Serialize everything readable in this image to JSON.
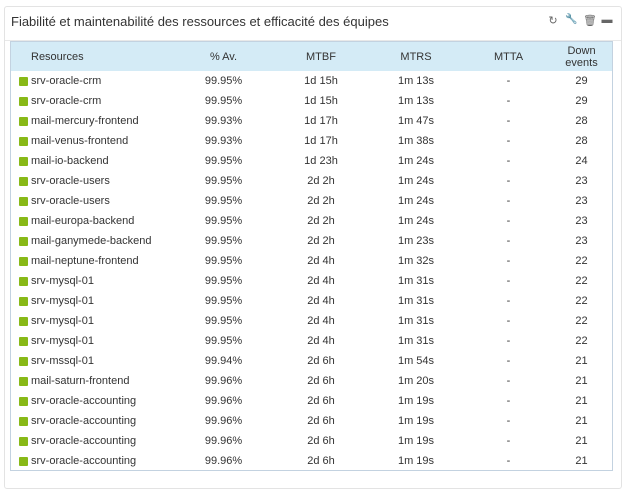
{
  "widget": {
    "title": "Fiabilité et maintenabilité des ressources et efficacité des équipes",
    "tools": [
      {
        "name": "refresh-icon",
        "glyph": "↻"
      },
      {
        "name": "wrench-icon",
        "glyph": "🔧"
      },
      {
        "name": "trash-icon",
        "glyph": "🗑"
      },
      {
        "name": "minimize-icon",
        "glyph": "▬"
      }
    ]
  },
  "colors": {
    "status_ok": "#88b917",
    "header_bg": "#d4ebf6"
  },
  "table": {
    "headers": [
      "Resources",
      "% Av.",
      "MTBF",
      "MTRS",
      "MTTA",
      "Down events"
    ],
    "rows": [
      [
        "srv-oracle-crm",
        "99.95%",
        "1d 15h",
        "1m 13s",
        "-",
        "29"
      ],
      [
        "srv-oracle-crm",
        "99.95%",
        "1d 15h",
        "1m 13s",
        "-",
        "29"
      ],
      [
        "mail-mercury-frontend",
        "99.93%",
        "1d 17h",
        "1m 47s",
        "-",
        "28"
      ],
      [
        "mail-venus-frontend",
        "99.93%",
        "1d 17h",
        "1m 38s",
        "-",
        "28"
      ],
      [
        "mail-io-backend",
        "99.95%",
        "1d 23h",
        "1m 24s",
        "-",
        "24"
      ],
      [
        "srv-oracle-users",
        "99.95%",
        "2d 2h",
        "1m 24s",
        "-",
        "23"
      ],
      [
        "srv-oracle-users",
        "99.95%",
        "2d 2h",
        "1m 24s",
        "-",
        "23"
      ],
      [
        "mail-europa-backend",
        "99.95%",
        "2d 2h",
        "1m 24s",
        "-",
        "23"
      ],
      [
        "mail-ganymede-backend",
        "99.95%",
        "2d 2h",
        "1m 23s",
        "-",
        "23"
      ],
      [
        "mail-neptune-frontend",
        "99.95%",
        "2d 4h",
        "1m 32s",
        "-",
        "22"
      ],
      [
        "srv-mysql-01",
        "99.95%",
        "2d 4h",
        "1m 31s",
        "-",
        "22"
      ],
      [
        "srv-mysql-01",
        "99.95%",
        "2d 4h",
        "1m 31s",
        "-",
        "22"
      ],
      [
        "srv-mysql-01",
        "99.95%",
        "2d 4h",
        "1m 31s",
        "-",
        "22"
      ],
      [
        "srv-mysql-01",
        "99.95%",
        "2d 4h",
        "1m 31s",
        "-",
        "22"
      ],
      [
        "srv-mssql-01",
        "99.94%",
        "2d 6h",
        "1m 54s",
        "-",
        "21"
      ],
      [
        "mail-saturn-frontend",
        "99.96%",
        "2d 6h",
        "1m 20s",
        "-",
        "21"
      ],
      [
        "srv-oracle-accounting",
        "99.96%",
        "2d 6h",
        "1m 19s",
        "-",
        "21"
      ],
      [
        "srv-oracle-accounting",
        "99.96%",
        "2d 6h",
        "1m 19s",
        "-",
        "21"
      ],
      [
        "srv-oracle-accounting",
        "99.96%",
        "2d 6h",
        "1m 19s",
        "-",
        "21"
      ],
      [
        "srv-oracle-accounting",
        "99.96%",
        "2d 6h",
        "1m 19s",
        "-",
        "21"
      ]
    ]
  }
}
